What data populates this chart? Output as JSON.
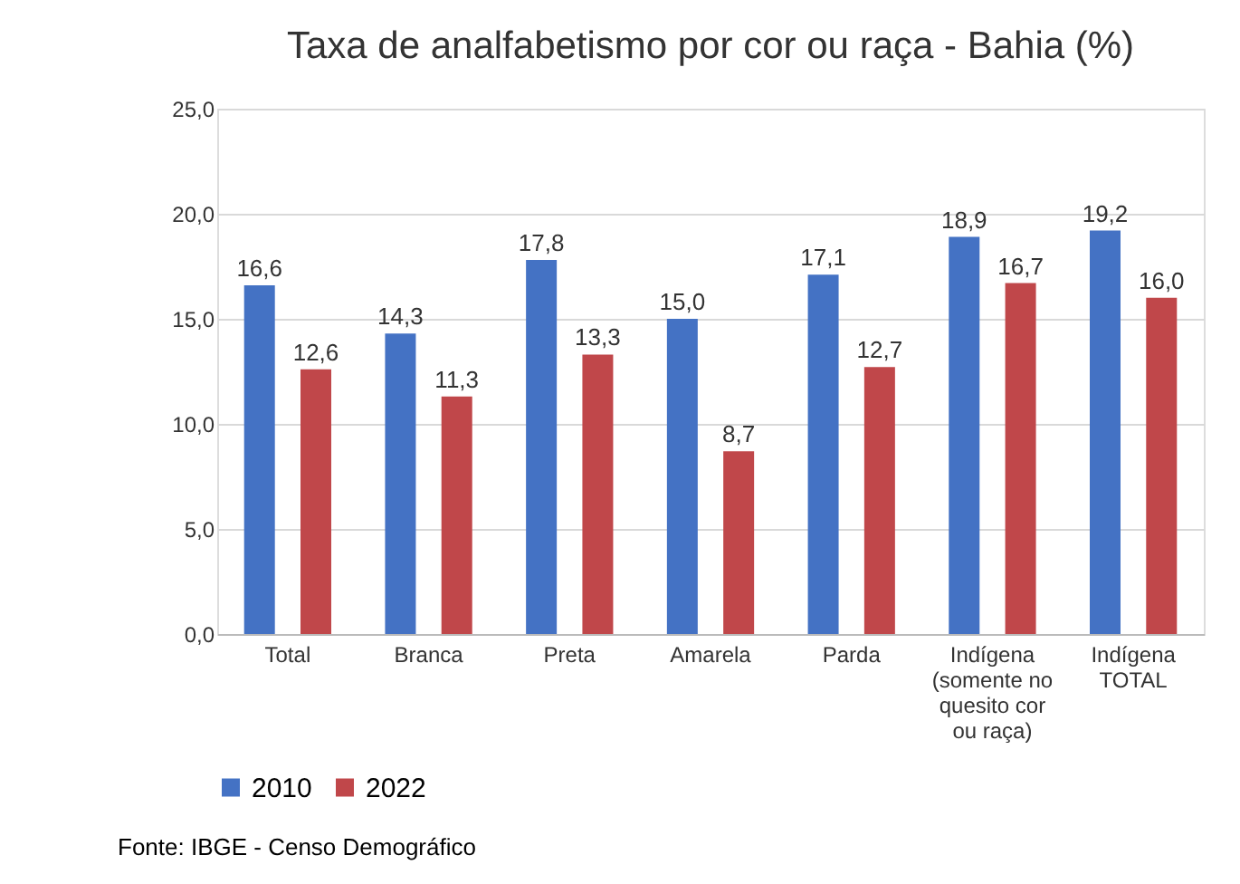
{
  "chart_data": {
    "type": "bar",
    "title": "Taxa de analfabetismo por cor ou raça - Bahia (%)",
    "categories": [
      "Total",
      "Branca",
      "Preta",
      "Amarela",
      "Parda",
      "Indígena (somente no quesito cor ou raça)",
      "Indígena TOTAL"
    ],
    "series": [
      {
        "name": "2010",
        "color": "#4472c4",
        "values": [
          16.6,
          14.3,
          17.8,
          15.0,
          17.1,
          18.9,
          19.2
        ],
        "value_labels": [
          "16,6",
          "14,3",
          "17,8",
          "15,0",
          "17,1",
          "18,9",
          "19,2"
        ]
      },
      {
        "name": "2022",
        "color": "#c0474a",
        "values": [
          12.6,
          11.3,
          13.3,
          8.7,
          12.7,
          16.7,
          16.0
        ],
        "value_labels": [
          "12,6",
          "11,3",
          "13,3",
          "8,7",
          "12,7",
          "16,7",
          "16,0"
        ]
      }
    ],
    "ylim": [
      0,
      25
    ],
    "yticks": [
      {
        "value": 0,
        "label": "0,0"
      },
      {
        "value": 5,
        "label": "5,0"
      },
      {
        "value": 10,
        "label": "10,0"
      },
      {
        "value": 15,
        "label": "15,0"
      },
      {
        "value": 20,
        "label": "20,0"
      },
      {
        "value": 25,
        "label": "25,0"
      }
    ],
    "grid": "y",
    "legend": "bottom",
    "annotations": [
      "Fonte: IBGE - Censo Demográfico"
    ]
  }
}
